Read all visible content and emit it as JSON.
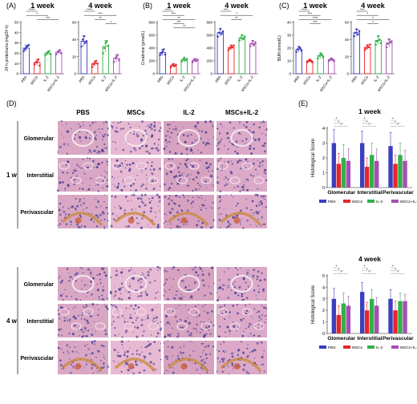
{
  "colors": {
    "PBS": "#3b3fbf",
    "MSCs": "#e8262a",
    "IL-2": "#33b04a",
    "MSCs+IL-2": "#a64fb3",
    "axis": "#222",
    "sig": "#222"
  },
  "groups": [
    "PBS",
    "MSCs",
    "IL-2",
    "MSCs+IL-2"
  ],
  "panel_labels": {
    "A": "(A)",
    "B": "(B)",
    "C": "(C)",
    "D": "(D)",
    "E": "(E)"
  },
  "week1": "1 week",
  "week4": "4 week",
  "ylabels": {
    "A": "24 h proteinuria (mg/24 h)",
    "B": "Creatinine (μmol/L)",
    "C": "BUN (mmol/L)",
    "E": "Histological Score"
  },
  "histo": {
    "columns": [
      "PBS",
      "MSCs",
      "IL-2",
      "MSCs+IL-2"
    ],
    "rows": [
      "Glomerular",
      "Interstitial",
      "Perivascular"
    ],
    "times": [
      "1 w",
      "4 w"
    ],
    "colors": {
      "PBS": "#d9a7c4",
      "MSCs": "#e7b9d2",
      "IL-2": "#d7a2c0",
      "MSCs+IL-2": "#dcaac8",
      "nucleus": "#4a3f93",
      "vessel": "#c98a3a",
      "blood": "#c8552e"
    }
  },
  "chart_data": [
    {
      "panel": "A",
      "type": "bar",
      "subtitle": "1 week",
      "ylabel": "24 h proteinuria (mg/24 h)",
      "ylim": [
        0,
        50
      ],
      "yticks": [
        0,
        10,
        20,
        30,
        40,
        50
      ],
      "categories": [
        "PBS",
        "MSCs",
        "IL-2",
        "MSCs+IL-2"
      ],
      "values": [
        25,
        11,
        20,
        21
      ],
      "err": [
        3,
        3,
        2,
        2
      ],
      "points": [
        [
          22,
          24,
          26,
          27,
          28
        ],
        [
          9,
          11,
          12,
          14,
          8
        ],
        [
          18,
          20,
          21,
          22,
          19
        ],
        [
          19,
          21,
          22,
          23,
          20
        ]
      ],
      "sig": [
        {
          "a": 0,
          "b": 1,
          "label": "****"
        },
        {
          "a": 0,
          "b": 2,
          "label": "*"
        },
        {
          "a": 1,
          "b": 3,
          "label": "***"
        }
      ]
    },
    {
      "panel": "A",
      "type": "bar",
      "subtitle": "4 week",
      "ylim": [
        0,
        60
      ],
      "yticks": [
        0,
        20,
        40,
        60
      ],
      "categories": [
        "PBS",
        "MSCs",
        "IL-2",
        "MSCs+IL-2"
      ],
      "values": [
        38,
        12,
        32,
        18
      ],
      "err": [
        6,
        3,
        7,
        4
      ],
      "points": [
        [
          32,
          40,
          44,
          36,
          38
        ],
        [
          8,
          11,
          13,
          15,
          12
        ],
        [
          24,
          30,
          36,
          38,
          33
        ],
        [
          14,
          18,
          20,
          22,
          16
        ]
      ],
      "sig": [
        {
          "a": 0,
          "b": 1,
          "label": "****"
        },
        {
          "a": 0,
          "b": 3,
          "label": "***"
        },
        {
          "a": 1,
          "b": 2,
          "label": "**"
        },
        {
          "a": 2,
          "b": 3,
          "label": "*"
        }
      ]
    },
    {
      "panel": "B",
      "type": "bar",
      "subtitle": "1 week",
      "ylabel": "Creatinine (μmol/L)",
      "ylim": [
        0,
        800
      ],
      "yticks": [
        0,
        200,
        400,
        600,
        800
      ],
      "categories": [
        "PBS",
        "MSCs",
        "IL-2",
        "MSCs+IL-2"
      ],
      "values": [
        330,
        130,
        220,
        210
      ],
      "err": [
        50,
        30,
        40,
        30
      ],
      "points": [
        [
          290,
          320,
          350,
          380,
          300
        ],
        [
          100,
          130,
          150,
          120,
          140
        ],
        [
          190,
          220,
          240,
          210,
          230
        ],
        [
          180,
          210,
          230,
          200,
          220
        ]
      ],
      "sig": [
        {
          "a": 0,
          "b": 1,
          "label": "****"
        },
        {
          "a": 0,
          "b": 2,
          "label": "***"
        },
        {
          "a": 0,
          "b": 3,
          "label": "**"
        },
        {
          "a": 1,
          "b": 2,
          "label": "***"
        },
        {
          "a": 1,
          "b": 3,
          "label": "**"
        }
      ]
    },
    {
      "panel": "B",
      "type": "bar",
      "subtitle": "4 week",
      "ylim": [
        0,
        800
      ],
      "yticks": [
        0,
        200,
        400,
        600,
        800
      ],
      "categories": [
        "PBS",
        "MSCs",
        "IL-2",
        "MSCs+IL-2"
      ],
      "values": [
        640,
        410,
        560,
        470
      ],
      "err": [
        60,
        40,
        50,
        50
      ],
      "points": [
        [
          580,
          640,
          700,
          620,
          660
        ],
        [
          370,
          400,
          430,
          410,
          440
        ],
        [
          520,
          560,
          600,
          540,
          580
        ],
        [
          430,
          470,
          510,
          450,
          490
        ]
      ],
      "sig": [
        {
          "a": 0,
          "b": 1,
          "label": "***"
        },
        {
          "a": 0,
          "b": 3,
          "label": "*"
        },
        {
          "a": 1,
          "b": 2,
          "label": "**"
        }
      ]
    },
    {
      "panel": "C",
      "type": "bar",
      "subtitle": "1 week",
      "ylabel": "BUN (mmol/L)",
      "ylim": [
        0,
        40
      ],
      "yticks": [
        0,
        10,
        20,
        30,
        40
      ],
      "categories": [
        "PBS",
        "MSCs",
        "IL-2",
        "MSCs+IL-2"
      ],
      "values": [
        19,
        10,
        14,
        11
      ],
      "err": [
        2,
        1,
        2,
        1
      ],
      "points": [
        [
          17,
          19,
          21,
          20,
          18
        ],
        [
          9,
          10,
          11,
          10,
          9
        ],
        [
          12,
          14,
          16,
          15,
          13
        ],
        [
          10,
          11,
          12,
          11,
          10
        ]
      ],
      "sig": [
        {
          "a": 0,
          "b": 1,
          "label": "****"
        },
        {
          "a": 0,
          "b": 2,
          "label": "***"
        },
        {
          "a": 0,
          "b": 3,
          "label": "****"
        },
        {
          "a": 1,
          "b": 2,
          "label": "***"
        }
      ]
    },
    {
      "panel": "C",
      "type": "bar",
      "subtitle": "4 week",
      "ylim": [
        0,
        60
      ],
      "yticks": [
        0,
        20,
        40,
        60
      ],
      "categories": [
        "PBS",
        "MSCs",
        "IL-2",
        "MSCs+IL-2"
      ],
      "values": [
        48,
        31,
        39,
        36
      ],
      "err": [
        4,
        3,
        5,
        5
      ],
      "points": [
        [
          44,
          48,
          52,
          46,
          50
        ],
        [
          28,
          30,
          33,
          31,
          34
        ],
        [
          34,
          38,
          44,
          40,
          36
        ],
        [
          31,
          35,
          40,
          37,
          38
        ]
      ],
      "sig": [
        {
          "a": 0,
          "b": 1,
          "label": "***"
        },
        {
          "a": 0,
          "b": 2,
          "label": "*"
        },
        {
          "a": 0,
          "b": 3,
          "label": "*"
        },
        {
          "a": 1,
          "b": 2,
          "label": "*"
        }
      ]
    },
    {
      "panel": "E",
      "type": "bar",
      "subtitle": "1 week",
      "ylabel": "Histological Score",
      "ylim": [
        0,
        4
      ],
      "yticks": [
        0,
        1,
        2,
        3,
        4
      ],
      "categories": [
        "Glomerular",
        "Interstitial",
        "Perivascular"
      ],
      "series": [
        {
          "name": "PBS",
          "values": [
            3.0,
            3.0,
            2.8
          ],
          "err": [
            0.9,
            0.8,
            0.9
          ]
        },
        {
          "name": "MSCs",
          "values": [
            1.6,
            1.4,
            1.6
          ],
          "err": [
            0.7,
            0.6,
            0.6
          ]
        },
        {
          "name": "IL-2",
          "values": [
            2.0,
            2.2,
            2.2
          ],
          "err": [
            0.9,
            0.8,
            0.8
          ]
        },
        {
          "name": "MSCs+IL-2",
          "values": [
            1.8,
            1.8,
            1.8
          ],
          "err": [
            0.8,
            0.8,
            0.7
          ]
        }
      ],
      "sig_label": "*",
      "legend": "bottom"
    },
    {
      "panel": "E",
      "type": "bar",
      "subtitle": "4 week",
      "ylabel": "Histological Score",
      "ylim": [
        0,
        5
      ],
      "yticks": [
        0,
        1,
        2,
        3,
        4,
        5
      ],
      "categories": [
        "Glomerular",
        "Interstitial",
        "Perivascular"
      ],
      "series": [
        {
          "name": "PBS",
          "values": [
            3.0,
            3.6,
            3.0
          ],
          "err": [
            0.9,
            0.8,
            0.8
          ]
        },
        {
          "name": "MSCs",
          "values": [
            1.6,
            2.0,
            2.0
          ],
          "err": [
            0.8,
            0.7,
            0.8
          ]
        },
        {
          "name": "IL-2",
          "values": [
            2.6,
            3.0,
            2.8
          ],
          "err": [
            0.9,
            0.8,
            0.7
          ]
        },
        {
          "name": "MSCs+IL-2",
          "values": [
            2.4,
            2.4,
            2.8
          ],
          "err": [
            0.8,
            0.7,
            0.6
          ]
        }
      ],
      "sig_label": "*",
      "legend": "bottom"
    }
  ]
}
